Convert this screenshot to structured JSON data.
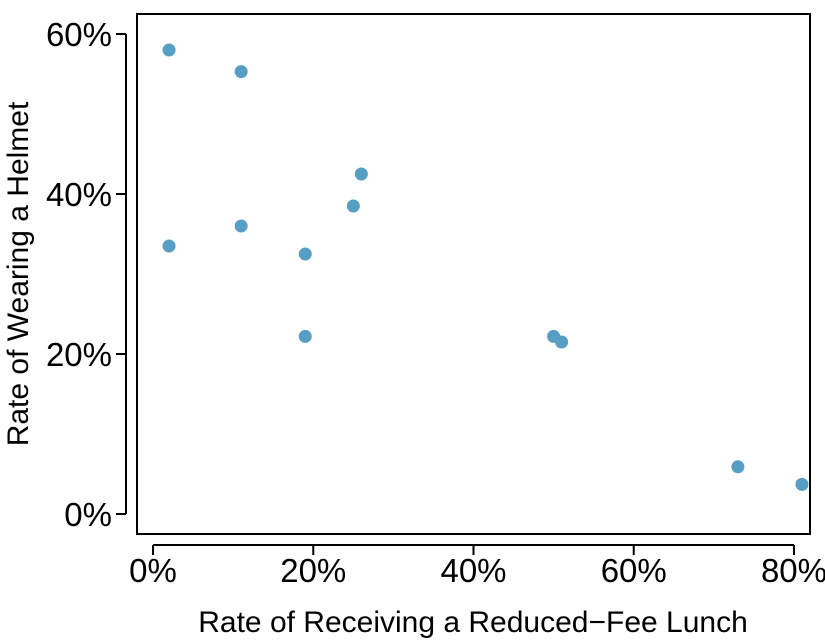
{
  "chart_data": {
    "type": "scatter",
    "xlabel": "Rate of Receiving a Reduced−Fee Lunch",
    "ylabel": "Rate of Wearing a Helmet",
    "x_ticks": [
      "0%",
      "20%",
      "40%",
      "60%",
      "80%"
    ],
    "y_ticks": [
      "0%",
      "20%",
      "40%",
      "60%"
    ],
    "xlim": [
      -2,
      82
    ],
    "ylim": [
      -2.5,
      62.5
    ],
    "grid": false,
    "point_color": "#569EC3",
    "points": [
      {
        "x": 2,
        "y": 58
      },
      {
        "x": 2,
        "y": 33.5
      },
      {
        "x": 11,
        "y": 55.3
      },
      {
        "x": 11,
        "y": 36
      },
      {
        "x": 19,
        "y": 32.5
      },
      {
        "x": 19,
        "y": 22.2
      },
      {
        "x": 25,
        "y": 38.5
      },
      {
        "x": 26,
        "y": 42.5
      },
      {
        "x": 50,
        "y": 22.2
      },
      {
        "x": 51,
        "y": 21.5
      },
      {
        "x": 73,
        "y": 5.9
      },
      {
        "x": 81,
        "y": 3.7
      }
    ]
  }
}
